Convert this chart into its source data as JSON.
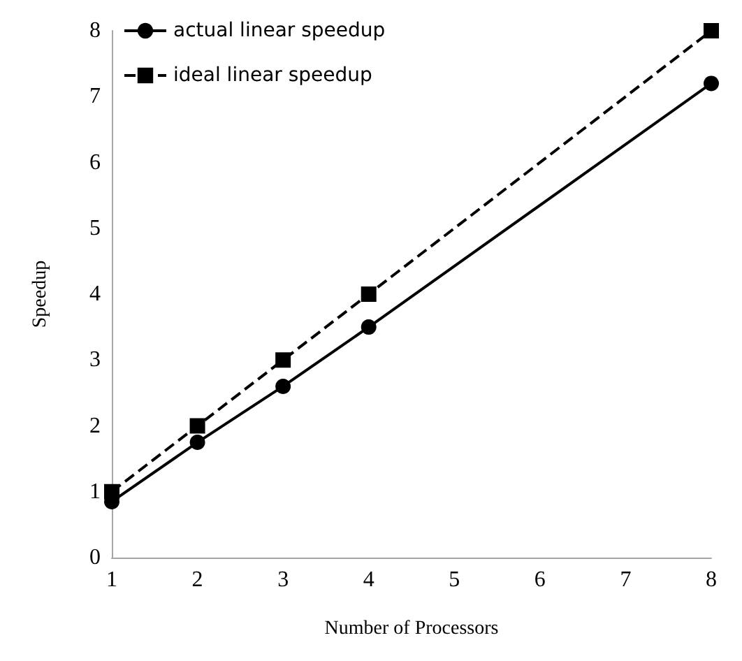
{
  "chart_data": {
    "type": "line",
    "xlabel": "Number of Processors",
    "ylabel": "Speedup",
    "x": [
      1,
      2,
      3,
      4,
      8
    ],
    "series": [
      {
        "name": "actual linear speedup",
        "color": "#000000",
        "values": [
          0.85,
          1.75,
          2.6,
          3.5,
          7.2
        ],
        "marker": "circle",
        "line_style": "solid"
      },
      {
        "name": "ideal linear speedup",
        "color": "#000000",
        "values": [
          1,
          2,
          3,
          4,
          8
        ],
        "marker": "square",
        "line_style": "dashed"
      }
    ],
    "xlim": [
      1,
      8
    ],
    "xticks": [
      1,
      2,
      3,
      4,
      5,
      6,
      7,
      8
    ],
    "ylim": [
      0,
      8
    ],
    "yticks": [
      0,
      1,
      2,
      3,
      4,
      5,
      6,
      7,
      8
    ],
    "grid": false,
    "legend": "top left"
  }
}
